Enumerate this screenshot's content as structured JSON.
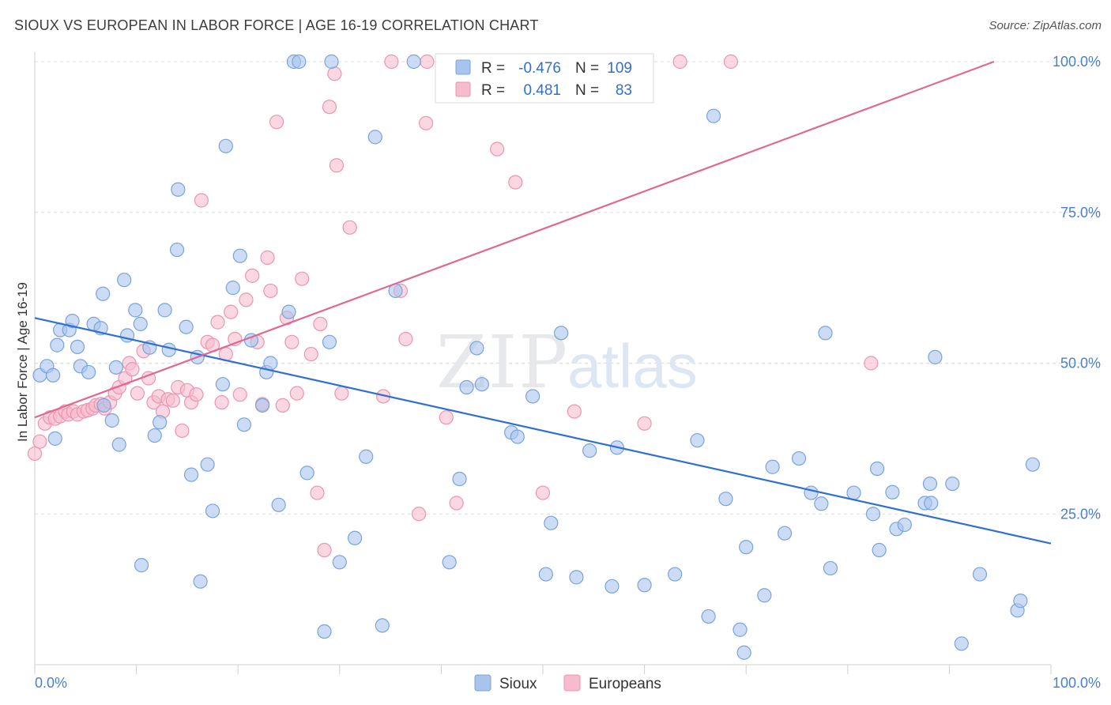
{
  "title": "SIOUX VS EUROPEAN IN LABOR FORCE | AGE 16-19 CORRELATION CHART",
  "source": "Source: ZipAtlas.com",
  "watermark": {
    "zip": "ZIP",
    "atlas": "atlas"
  },
  "colors": {
    "sioux_fill": "#a9c4ec",
    "sioux_stroke": "#7aa3de",
    "sioux_line": "#2f6fd3",
    "euro_fill": "#f6bccd",
    "euro_stroke": "#ec95b1",
    "euro_line": "#e06892",
    "grid": "#dcdcdc",
    "tick_label": "#4a7fd0"
  },
  "legend_stats": [
    {
      "r_label": "R =",
      "r_value": "-0.476",
      "n_label": "N =",
      "n_value": "109",
      "series": "Sioux"
    },
    {
      "r_label": "R =",
      "r_value": "0.481",
      "n_label": "N =",
      "n_value": "83",
      "series": "Europeans"
    }
  ],
  "chart_data": {
    "type": "scatter",
    "title": "SIOUX VS EUROPEAN IN LABOR FORCE | AGE 16-19 CORRELATION CHART",
    "xlabel": "",
    "ylabel": "In Labor Force | Age 16-19",
    "xlim": [
      0,
      100
    ],
    "ylim": [
      0,
      100
    ],
    "x_tick_labels": [
      "0.0%",
      "100.0%"
    ],
    "y_ticks": [
      25,
      50,
      75,
      100
    ],
    "y_tick_labels": [
      "25.0%",
      "50.0%",
      "75.0%",
      "100.0%"
    ],
    "grid": true,
    "legend_position": "bottom-center",
    "series": [
      {
        "name": "Sioux",
        "trend": {
          "x": [
            0,
            100
          ],
          "y": [
            57.5,
            20.1
          ]
        },
        "points": [
          [
            0.5,
            48.0
          ],
          [
            1.2,
            49.5
          ],
          [
            1.8,
            48.0
          ],
          [
            2.2,
            53.0
          ],
          [
            2.5,
            55.5
          ],
          [
            3.4,
            55.5
          ],
          [
            3.7,
            57.0
          ],
          [
            4.2,
            52.7
          ],
          [
            4.5,
            49.5
          ],
          [
            5.3,
            48.5
          ],
          [
            5.8,
            56.5
          ],
          [
            6.5,
            55.8
          ],
          [
            6.7,
            61.5
          ],
          [
            7.6,
            40.5
          ],
          [
            8.0,
            49.3
          ],
          [
            8.3,
            36.5
          ],
          [
            8.8,
            63.8
          ],
          [
            9.1,
            54.6
          ],
          [
            9.9,
            58.8
          ],
          [
            10.4,
            56.5
          ],
          [
            10.5,
            16.5
          ],
          [
            11.3,
            52.6
          ],
          [
            11.8,
            38.0
          ],
          [
            12.3,
            40.2
          ],
          [
            12.8,
            58.8
          ],
          [
            13.2,
            52.2
          ],
          [
            14.1,
            78.8
          ],
          [
            14.0,
            68.8
          ],
          [
            14.9,
            56.0
          ],
          [
            15.4,
            31.5
          ],
          [
            16.0,
            51.0
          ],
          [
            16.3,
            13.8
          ],
          [
            17.0,
            33.2
          ],
          [
            17.5,
            25.5
          ],
          [
            18.5,
            46.5
          ],
          [
            18.8,
            86.0
          ],
          [
            19.5,
            62.5
          ],
          [
            20.2,
            67.8
          ],
          [
            20.6,
            39.8
          ],
          [
            21.3,
            53.8
          ],
          [
            22.4,
            43.0
          ],
          [
            22.8,
            48.5
          ],
          [
            23.2,
            50.0
          ],
          [
            24.0,
            26.5
          ],
          [
            25.0,
            58.5
          ],
          [
            25.5,
            100.0
          ],
          [
            26.0,
            100.0
          ],
          [
            26.8,
            31.8
          ],
          [
            28.5,
            5.5
          ],
          [
            29.0,
            53.5
          ],
          [
            29.2,
            100.0
          ],
          [
            30.0,
            17.0
          ],
          [
            31.5,
            21.0
          ],
          [
            32.6,
            34.5
          ],
          [
            33.5,
            87.5
          ],
          [
            34.2,
            6.5
          ],
          [
            35.5,
            62.0
          ],
          [
            37.3,
            100.0
          ],
          [
            40.8,
            17.0
          ],
          [
            41.8,
            30.8
          ],
          [
            42.5,
            46.0
          ],
          [
            43.5,
            52.5
          ],
          [
            44.0,
            46.5
          ],
          [
            46.9,
            38.5
          ],
          [
            47.5,
            37.8
          ],
          [
            49.0,
            44.5
          ],
          [
            50.3,
            15.0
          ],
          [
            50.8,
            23.5
          ],
          [
            51.8,
            55.0
          ],
          [
            53.3,
            14.5
          ],
          [
            54.6,
            35.5
          ],
          [
            56.8,
            13.0
          ],
          [
            57.3,
            36.0
          ],
          [
            60.0,
            13.2
          ],
          [
            63.0,
            15.0
          ],
          [
            65.2,
            37.2
          ],
          [
            66.3,
            8.0
          ],
          [
            66.8,
            91.0
          ],
          [
            68.0,
            27.5
          ],
          [
            69.4,
            5.8
          ],
          [
            69.8,
            2.0
          ],
          [
            70.0,
            19.5
          ],
          [
            71.8,
            11.5
          ],
          [
            72.6,
            32.8
          ],
          [
            73.8,
            21.8
          ],
          [
            75.2,
            34.2
          ],
          [
            76.4,
            28.5
          ],
          [
            77.4,
            26.7
          ],
          [
            77.8,
            55.0
          ],
          [
            78.3,
            16.0
          ],
          [
            80.6,
            28.5
          ],
          [
            82.5,
            25.0
          ],
          [
            82.9,
            32.5
          ],
          [
            83.1,
            19.0
          ],
          [
            84.4,
            28.6
          ],
          [
            84.8,
            22.5
          ],
          [
            85.6,
            23.2
          ],
          [
            87.6,
            26.8
          ],
          [
            88.1,
            30.0
          ],
          [
            88.2,
            26.8
          ],
          [
            88.6,
            51.0
          ],
          [
            90.3,
            30.0
          ],
          [
            91.2,
            3.5
          ],
          [
            93.0,
            15.0
          ],
          [
            96.7,
            9.0
          ],
          [
            97.0,
            10.6
          ],
          [
            98.2,
            33.2
          ],
          [
            2.0,
            37.5
          ],
          [
            6.8,
            43.0
          ]
        ]
      },
      {
        "name": "Europeans",
        "trend": {
          "x": [
            0,
            100
          ],
          "y": [
            41.0,
            103.5
          ]
        },
        "points": [
          [
            0.0,
            35.0
          ],
          [
            0.5,
            37.0
          ],
          [
            1.0,
            40.0
          ],
          [
            1.5,
            41.0
          ],
          [
            2.0,
            40.8
          ],
          [
            2.5,
            41.2
          ],
          [
            3.0,
            42.0
          ],
          [
            3.3,
            41.5
          ],
          [
            3.8,
            42.0
          ],
          [
            4.2,
            41.5
          ],
          [
            4.8,
            42.0
          ],
          [
            5.2,
            42.2
          ],
          [
            5.7,
            42.5
          ],
          [
            6.0,
            43.0
          ],
          [
            6.5,
            43.2
          ],
          [
            6.9,
            42.5
          ],
          [
            7.4,
            43.5
          ],
          [
            7.9,
            45.0
          ],
          [
            8.3,
            46.0
          ],
          [
            8.9,
            47.5
          ],
          [
            9.3,
            50.0
          ],
          [
            9.6,
            49.0
          ],
          [
            10.1,
            45.0
          ],
          [
            10.7,
            52.0
          ],
          [
            11.2,
            47.5
          ],
          [
            11.7,
            43.5
          ],
          [
            12.2,
            44.5
          ],
          [
            12.6,
            42.0
          ],
          [
            13.1,
            44.0
          ],
          [
            13.6,
            43.8
          ],
          [
            14.1,
            46.0
          ],
          [
            14.5,
            38.8
          ],
          [
            15.0,
            45.5
          ],
          [
            15.4,
            43.5
          ],
          [
            15.9,
            44.8
          ],
          [
            16.4,
            77.0
          ],
          [
            17.0,
            53.5
          ],
          [
            17.5,
            53.0
          ],
          [
            18.0,
            56.8
          ],
          [
            18.4,
            43.5
          ],
          [
            18.8,
            51.5
          ],
          [
            19.3,
            58.5
          ],
          [
            19.7,
            54.0
          ],
          [
            20.2,
            44.8
          ],
          [
            20.8,
            60.5
          ],
          [
            21.4,
            64.5
          ],
          [
            21.9,
            53.5
          ],
          [
            22.4,
            43.2
          ],
          [
            22.9,
            67.5
          ],
          [
            23.2,
            62.0
          ],
          [
            23.8,
            90.0
          ],
          [
            24.4,
            43.0
          ],
          [
            24.8,
            57.5
          ],
          [
            25.3,
            53.5
          ],
          [
            25.8,
            45.0
          ],
          [
            26.3,
            64.0
          ],
          [
            27.2,
            51.5
          ],
          [
            27.8,
            28.5
          ],
          [
            28.1,
            56.5
          ],
          [
            28.5,
            19.0
          ],
          [
            29.0,
            92.5
          ],
          [
            29.5,
            98.0
          ],
          [
            29.7,
            82.8
          ],
          [
            30.2,
            45.0
          ],
          [
            31.0,
            72.5
          ],
          [
            34.3,
            44.5
          ],
          [
            35.1,
            100.0
          ],
          [
            36.0,
            62.0
          ],
          [
            36.5,
            54.0
          ],
          [
            37.8,
            25.0
          ],
          [
            38.6,
            100.0
          ],
          [
            38.5,
            89.8
          ],
          [
            40.5,
            41.0
          ],
          [
            41.5,
            26.8
          ],
          [
            45.5,
            85.5
          ],
          [
            47.3,
            80.0
          ],
          [
            50.0,
            28.5
          ],
          [
            53.1,
            42.0
          ],
          [
            60.0,
            40.0
          ],
          [
            63.5,
            100.0
          ],
          [
            68.5,
            100.0
          ],
          [
            82.3,
            50.0
          ],
          [
            43.0,
            100.0
          ]
        ]
      }
    ]
  },
  "legend": [
    {
      "label": "Sioux"
    },
    {
      "label": "Europeans"
    }
  ]
}
